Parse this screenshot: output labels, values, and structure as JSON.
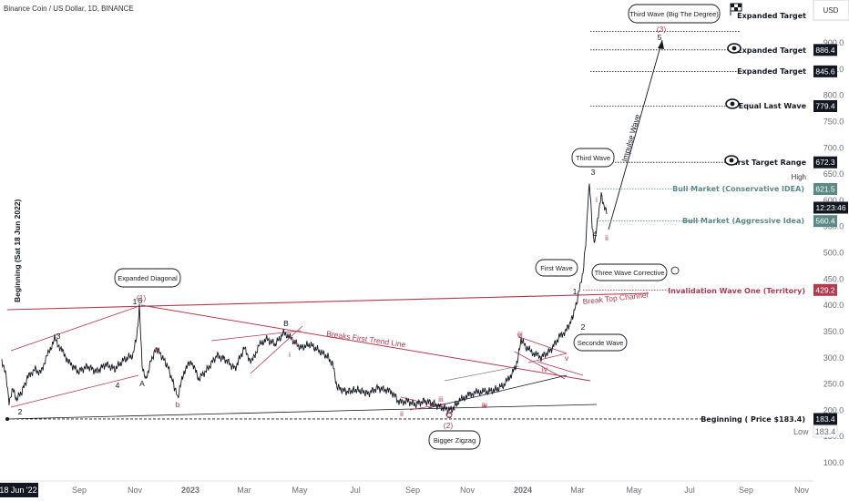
{
  "header": {
    "symbol": "Binance Coin / US Dollar, 1D, BINANCE",
    "currency": "USD"
  },
  "chart_data": {
    "type": "line",
    "title": "Binance Coin / US Dollar, 1D, BINANCE",
    "ylim": [
      90,
      1000
    ],
    "yticks": [
      100,
      150,
      200,
      250,
      300,
      350,
      400,
      450,
      500,
      550,
      600,
      650,
      700,
      750,
      800,
      850,
      900
    ],
    "ytick_labels": [
      "100.0",
      "150.0",
      "200.0",
      "250.0",
      "300.0",
      "350.0",
      "400.0",
      "450.0",
      "500.0",
      "550.0",
      "600.0",
      "650.0",
      "700.0",
      "750.0",
      "800.0",
      "850.0",
      "900.0"
    ],
    "xticks": [
      {
        "label": "18 Jun '22",
        "bold": true
      },
      {
        "label": "Sep"
      },
      {
        "label": "Nov"
      },
      {
        "label": "2023"
      },
      {
        "label": "Mar"
      },
      {
        "label": "May"
      },
      {
        "label": "Jul"
      },
      {
        "label": "Sep"
      },
      {
        "label": "Nov"
      },
      {
        "label": "2024"
      },
      {
        "label": "Mar"
      },
      {
        "label": "May"
      },
      {
        "label": "Jul"
      },
      {
        "label": "Sep"
      },
      {
        "label": "Nov"
      }
    ],
    "price_tags": [
      {
        "value": 886.4,
        "label": "886.4",
        "color": "#131722"
      },
      {
        "value": 845.6,
        "label": "845.6",
        "color": "#131722"
      },
      {
        "value": 779.4,
        "label": "779.4",
        "color": "#131722"
      },
      {
        "value": 672.3,
        "label": "672.3",
        "color": "#131722"
      },
      {
        "value": 621.5,
        "label": "621.5",
        "color": "#5b8a86"
      },
      {
        "value": 600.0,
        "label": "12:23:46",
        "color": "#131722"
      },
      {
        "value": 560.4,
        "label": "560.4",
        "color": "#5b8a86"
      },
      {
        "value": 429.2,
        "label": "429.2",
        "color": "#b23b4f"
      },
      {
        "value": 183.4,
        "label": "183.4",
        "color": "#131722"
      }
    ],
    "levels": [
      {
        "label": "Expanded Target",
        "value": 918,
        "color": "#131722",
        "icon": "flag"
      },
      {
        "label": "Expanded Target",
        "value": 886.4,
        "color": "#131722",
        "icon": "eye"
      },
      {
        "label": "Expanded Target",
        "value": 845.6,
        "color": "#131722",
        "icon": ""
      },
      {
        "label": "Equal Last Wave",
        "value": 779.4,
        "color": "#131722",
        "icon": "eye"
      },
      {
        "label": "First Target Range",
        "value": 672.3,
        "color": "#131722",
        "icon": "eye"
      },
      {
        "label": "Bull Market (Conservative IDEA)",
        "value": 621.5,
        "color": "#5b8a86",
        "icon": ""
      },
      {
        "label": "Bull Market (Aggressive Idea)",
        "value": 560.4,
        "color": "#5b8a86",
        "icon": ""
      },
      {
        "label": "Invalidation Wave One (Territory)",
        "value": 429.2,
        "color": "#b23b4f",
        "icon": ""
      },
      {
        "label": "Beginning ( Price $183.4)",
        "value": 183.4,
        "color": "#131722",
        "icon": ""
      }
    ],
    "high_label": "High",
    "low": {
      "label": "Low",
      "value": "183.4"
    },
    "vertical_label": "Beginning (Sat 18 Jun 2022)",
    "annotations": [
      {
        "text": "Breaks First Trend Line",
        "color": "#b23b4f"
      },
      {
        "text": "Impulse Wave",
        "color": "#131722"
      },
      {
        "text": "Break Top Channel",
        "color": "#b23b4f"
      }
    ],
    "bubbles": [
      {
        "text": "Third Wave (Big The Degree)"
      },
      {
        "text": "Third Wave"
      },
      {
        "text": "First Wave"
      },
      {
        "text": "Three Wave Corrective"
      },
      {
        "text": "Seconde Wave"
      },
      {
        "text": "Expanded Diagonal"
      },
      {
        "text": "Bigger Zigzag"
      }
    ],
    "wave_labels": [
      {
        "text": "(3)",
        "color": "#b23b4f"
      },
      {
        "text": "3",
        "color": "#131722"
      },
      {
        "text": "4",
        "color": "#131722"
      },
      {
        "text": "i",
        "color": "#b23b4f"
      },
      {
        "text": "ii",
        "color": "#b23b4f"
      },
      {
        "text": "5",
        "color": "#131722"
      },
      {
        "text": "(1)",
        "color": "#b23b4f"
      },
      {
        "text": "1",
        "color": "#131722"
      },
      {
        "text": "2",
        "color": "#131722"
      },
      {
        "text": "3",
        "color": "#131722"
      },
      {
        "text": "4",
        "color": "#131722"
      },
      {
        "text": "5",
        "color": "#131722"
      },
      {
        "text": "A",
        "color": "#131722"
      },
      {
        "text": "B",
        "color": "#131722"
      },
      {
        "text": "C",
        "color": "#131722"
      },
      {
        "text": "a",
        "color": "#b23b4f"
      },
      {
        "text": "b",
        "color": "#b23b4f"
      },
      {
        "text": "c",
        "color": "#b23b4f"
      },
      {
        "text": "i",
        "color": "#b23b4f"
      },
      {
        "text": "ii",
        "color": "#b23b4f"
      },
      {
        "text": "iii",
        "color": "#b23b4f"
      },
      {
        "text": "iv",
        "color": "#b23b4f"
      },
      {
        "text": "v",
        "color": "#b23b4f"
      },
      {
        "text": "(2)",
        "color": "#b23b4f"
      },
      {
        "text": "iii",
        "color": "#b23b4f"
      },
      {
        "text": "ii",
        "color": "#b23b4f"
      },
      {
        "text": "iv",
        "color": "#b23b4f"
      },
      {
        "text": "v",
        "color": "#b23b4f"
      },
      {
        "text": "1",
        "color": "#131722"
      },
      {
        "text": "2",
        "color": "#131722"
      }
    ],
    "colors": {
      "price": "#131722",
      "bear": "#b23b4f",
      "bull": "#5b8a86"
    },
    "grid": false
  }
}
